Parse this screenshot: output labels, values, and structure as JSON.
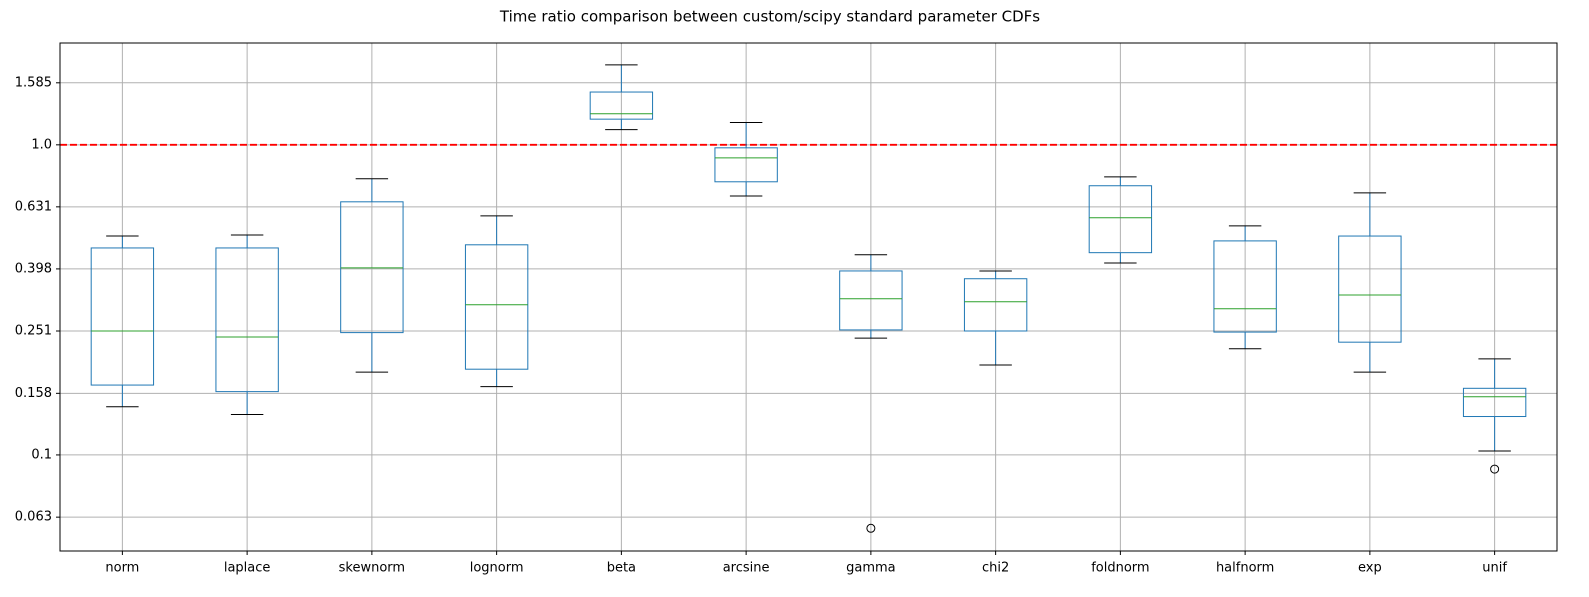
{
  "chart_data": {
    "type": "box",
    "title": "Time ratio comparison between custom/scipy standard parameter CDFs",
    "categories": [
      "norm",
      "laplace",
      "skewnorm",
      "lognorm",
      "beta",
      "arcsine",
      "gamma",
      "chi2",
      "foldnorm",
      "halfnorm",
      "exp",
      "unif"
    ],
    "boxes": [
      {
        "min": 0.143,
        "q1": 0.168,
        "median": 0.251,
        "q3": 0.465,
        "max": 0.508,
        "outliers": []
      },
      {
        "min": 0.135,
        "q1": 0.16,
        "median": 0.24,
        "q3": 0.465,
        "max": 0.512,
        "outliers": []
      },
      {
        "min": 0.185,
        "q1": 0.248,
        "median": 0.401,
        "q3": 0.655,
        "max": 0.777,
        "outliers": []
      },
      {
        "min": 0.166,
        "q1": 0.189,
        "median": 0.305,
        "q3": 0.476,
        "max": 0.59,
        "outliers": []
      },
      {
        "min": 1.12,
        "q1": 1.21,
        "median": 1.26,
        "q3": 1.48,
        "max": 1.81,
        "outliers": []
      },
      {
        "min": 0.684,
        "q1": 0.76,
        "median": 0.908,
        "q3": 0.978,
        "max": 1.18,
        "outliers": []
      },
      {
        "min": 0.238,
        "q1": 0.253,
        "median": 0.319,
        "q3": 0.392,
        "max": 0.442,
        "outliers": [
          0.058
        ]
      },
      {
        "min": 0.195,
        "q1": 0.251,
        "median": 0.312,
        "q3": 0.37,
        "max": 0.392,
        "outliers": []
      },
      {
        "min": 0.416,
        "q1": 0.449,
        "median": 0.582,
        "q3": 0.738,
        "max": 0.788,
        "outliers": []
      },
      {
        "min": 0.22,
        "q1": 0.249,
        "median": 0.296,
        "q3": 0.49,
        "max": 0.548,
        "outliers": []
      },
      {
        "min": 0.185,
        "q1": 0.231,
        "median": 0.328,
        "q3": 0.508,
        "max": 0.7,
        "outliers": []
      },
      {
        "min": 0.103,
        "q1": 0.133,
        "median": 0.154,
        "q3": 0.164,
        "max": 0.204,
        "outliers": [
          0.09
        ]
      }
    ],
    "box_color": "#1f77b4",
    "median_color": "#2ca02c",
    "whisker_cap_color": "#000000",
    "yscale": "log",
    "ylim": [
      0.049,
      2.13
    ],
    "yticks": [
      0.063,
      0.1,
      0.158,
      0.251,
      0.398,
      0.631,
      {
        "value": 1,
        "label": "1.0"
      },
      1.585
    ],
    "grid": true,
    "reference_line": {
      "value": 1,
      "color": "#ff0000"
    }
  }
}
